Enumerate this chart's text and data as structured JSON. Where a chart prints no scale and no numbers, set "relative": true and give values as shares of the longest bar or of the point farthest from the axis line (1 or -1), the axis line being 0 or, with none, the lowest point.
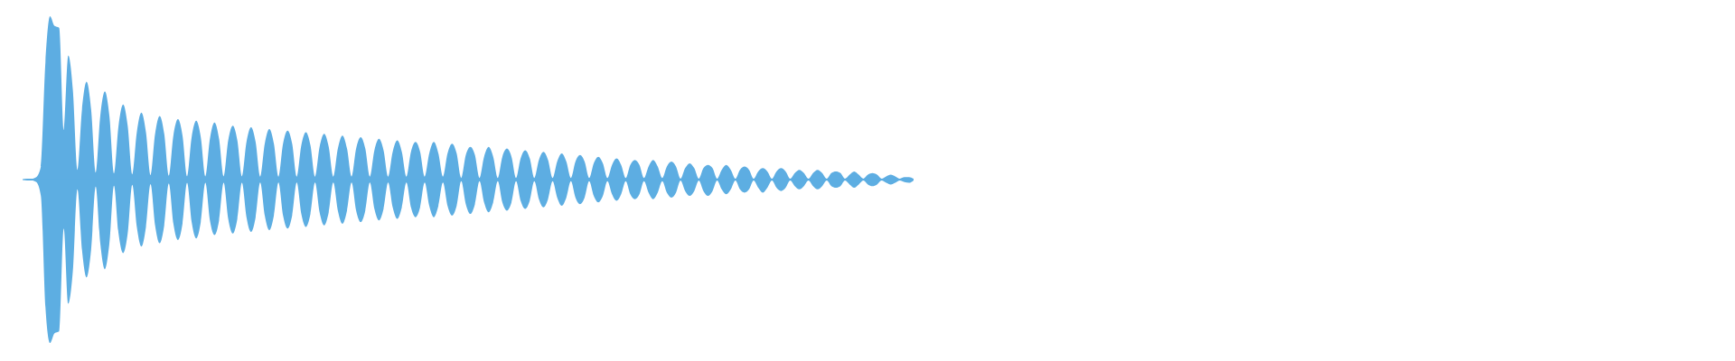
{
  "chart_data": {
    "type": "area",
    "relative": true,
    "categories": [
      null,
      null,
      null,
      null,
      null,
      null,
      null,
      null,
      null,
      null,
      null,
      null,
      null,
      null,
      null,
      null,
      null,
      null,
      null,
      null,
      null,
      null,
      null,
      null,
      null,
      null,
      null,
      null,
      null,
      null,
      null,
      null,
      null,
      null,
      null,
      null,
      null,
      null,
      null,
      null,
      null,
      null,
      null,
      null,
      null,
      null,
      null,
      null,
      null,
      null,
      null,
      null,
      null,
      null,
      null,
      null,
      null,
      null,
      null,
      null,
      null,
      null,
      null,
      null,
      null,
      null,
      null,
      null,
      null,
      null,
      null,
      null,
      null,
      null,
      null,
      null,
      null,
      null,
      null,
      null,
      null,
      null,
      null,
      null,
      null,
      null,
      null,
      null,
      null,
      null,
      null,
      null,
      null,
      null,
      null,
      null,
      null,
      null,
      null,
      null,
      null,
      null,
      null,
      null,
      null,
      null,
      null,
      null,
      null,
      null,
      null,
      null,
      null,
      null,
      null,
      null,
      null,
      null,
      null,
      null,
      null,
      null,
      null,
      null,
      null,
      null,
      null,
      null,
      null,
      null,
      null,
      null,
      null,
      null,
      null,
      null,
      null,
      null,
      null,
      null,
      null,
      null,
      null,
      null,
      null,
      null,
      null,
      null,
      null,
      null,
      null,
      null,
      null,
      null,
      null,
      null,
      null,
      null,
      null,
      null,
      null,
      null,
      null,
      null,
      null,
      null,
      null,
      null,
      null,
      null,
      null,
      null,
      null,
      null,
      null,
      null,
      null,
      null,
      null,
      null,
      null,
      null,
      null,
      null,
      null,
      null,
      null,
      null,
      null,
      null,
      null,
      null,
      null,
      null,
      null,
      null
    ],
    "series": [
      {
        "color": "#5dade2",
        "values": [
          0,
          0.005,
          0.005,
          0.015,
          0.08,
          0.72,
          1,
          0.94,
          0.93,
          0.3,
          0.76,
          0.55,
          0.06,
          0.43,
          0.6,
          0.43,
          0.043,
          0.39,
          0.54,
          0.39,
          0.037,
          0.33,
          0.46,
          0.33,
          0.032,
          0.29,
          0.41,
          0.29,
          0.027,
          0.28,
          0.39,
          0.28,
          0.023,
          0.27,
          0.37,
          0.27,
          0.02,
          0.26,
          0.36,
          0.26,
          0.02,
          0.25,
          0.35,
          0.25,
          0.02,
          0.24,
          0.33,
          0.24,
          0.02,
          0.23,
          0.32,
          0.23,
          0.018,
          0.22,
          0.31,
          0.22,
          0.018,
          0.22,
          0.3,
          0.22,
          0.018,
          0.21,
          0.29,
          0.21,
          0.018,
          0.2,
          0.28,
          0.2,
          0.018,
          0.19,
          0.27,
          0.19,
          0.018,
          0.19,
          0.26,
          0.19,
          0.018,
          0.18,
          0.25,
          0.18,
          0.018,
          0.17,
          0.24,
          0.17,
          0.018,
          0.17,
          0.23,
          0.17,
          0.018,
          0.16,
          0.23,
          0.16,
          0.018,
          0.16,
          0.22,
          0.16,
          0.01,
          0.15,
          0.2,
          0.15,
          0.01,
          0.14,
          0.2,
          0.14,
          0.01,
          0.14,
          0.19,
          0.14,
          0.01,
          0.13,
          0.18,
          0.13,
          0.01,
          0.12,
          0.17,
          0.12,
          0.01,
          0.11,
          0.16,
          0.11,
          0.01,
          0.11,
          0.15,
          0.11,
          0.01,
          0.1,
          0.14,
          0.1,
          0.01,
          0.09,
          0.13,
          0.09,
          0.01,
          0.09,
          0.12,
          0.09,
          0.01,
          0.08,
          0.12,
          0.08,
          0.01,
          0.08,
          0.11,
          0.08,
          0.006,
          0.07,
          0.1,
          0.07,
          0.006,
          0.07,
          0.09,
          0.07,
          0.006,
          0.06,
          0.09,
          0.06,
          0.006,
          0.06,
          0.08,
          0.06,
          0.006,
          0.05,
          0.07,
          0.05,
          0.006,
          0.05,
          0.07,
          0.05,
          0.006,
          0.04,
          0.06,
          0.04,
          0.006,
          0.04,
          0.06,
          0.04,
          0.006,
          0.04,
          0.05,
          0.04,
          0.006,
          0.03,
          0.05,
          0.03,
          0.006,
          0.03,
          0.04,
          0.03,
          0.006,
          0.02,
          0.03,
          0.02,
          0.006,
          0.015,
          0.015,
          0.005
        ]
      },
      {
        "color": "#5daee2",
        "values": [
          0,
          -0.005,
          -0.005,
          -0.015,
          -0.1,
          -0.78,
          -1,
          -0.94,
          -0.93,
          -0.3,
          -0.76,
          -0.56,
          -0.06,
          -0.43,
          -0.6,
          -0.43,
          -0.043,
          -0.39,
          -0.55,
          -0.39,
          -0.037,
          -0.33,
          -0.45,
          -0.33,
          -0.032,
          -0.29,
          -0.41,
          -0.29,
          -0.027,
          -0.28,
          -0.39,
          -0.28,
          -0.023,
          -0.27,
          -0.37,
          -0.27,
          -0.02,
          -0.26,
          -0.36,
          -0.26,
          -0.02,
          -0.25,
          -0.34,
          -0.25,
          -0.02,
          -0.24,
          -0.33,
          -0.24,
          -0.02,
          -0.23,
          -0.32,
          -0.23,
          -0.018,
          -0.22,
          -0.31,
          -0.22,
          -0.018,
          -0.22,
          -0.3,
          -0.22,
          -0.018,
          -0.21,
          -0.29,
          -0.21,
          -0.018,
          -0.2,
          -0.28,
          -0.2,
          -0.018,
          -0.19,
          -0.27,
          -0.19,
          -0.018,
          -0.19,
          -0.26,
          -0.19,
          -0.018,
          -0.18,
          -0.25,
          -0.18,
          -0.018,
          -0.17,
          -0.24,
          -0.17,
          -0.018,
          -0.17,
          -0.23,
          -0.17,
          -0.018,
          -0.16,
          -0.23,
          -0.16,
          -0.018,
          -0.16,
          -0.22,
          -0.16,
          -0.01,
          -0.15,
          -0.21,
          -0.15,
          -0.01,
          -0.14,
          -0.2,
          -0.14,
          -0.01,
          -0.14,
          -0.19,
          -0.14,
          -0.01,
          -0.13,
          -0.18,
          -0.13,
          -0.01,
          -0.12,
          -0.17,
          -0.12,
          -0.01,
          -0.11,
          -0.16,
          -0.11,
          -0.01,
          -0.11,
          -0.15,
          -0.11,
          -0.01,
          -0.1,
          -0.14,
          -0.1,
          -0.01,
          -0.09,
          -0.13,
          -0.09,
          -0.01,
          -0.09,
          -0.12,
          -0.09,
          -0.01,
          -0.08,
          -0.12,
          -0.08,
          -0.01,
          -0.08,
          -0.11,
          -0.08,
          -0.006,
          -0.07,
          -0.1,
          -0.07,
          -0.006,
          -0.07,
          -0.1,
          -0.07,
          -0.006,
          -0.06,
          -0.09,
          -0.06,
          -0.006,
          -0.06,
          -0.08,
          -0.06,
          -0.006,
          -0.05,
          -0.08,
          -0.05,
          -0.006,
          -0.05,
          -0.07,
          -0.05,
          -0.006,
          -0.04,
          -0.06,
          -0.04,
          -0.006,
          -0.04,
          -0.06,
          -0.04,
          -0.006,
          -0.04,
          -0.05,
          -0.04,
          -0.006,
          -0.03,
          -0.05,
          -0.03,
          -0.006,
          -0.03,
          -0.04,
          -0.03,
          -0.006,
          -0.02,
          -0.03,
          -0.02,
          -0.006,
          -0.015,
          -0.02,
          -0.005
        ]
      }
    ]
  }
}
